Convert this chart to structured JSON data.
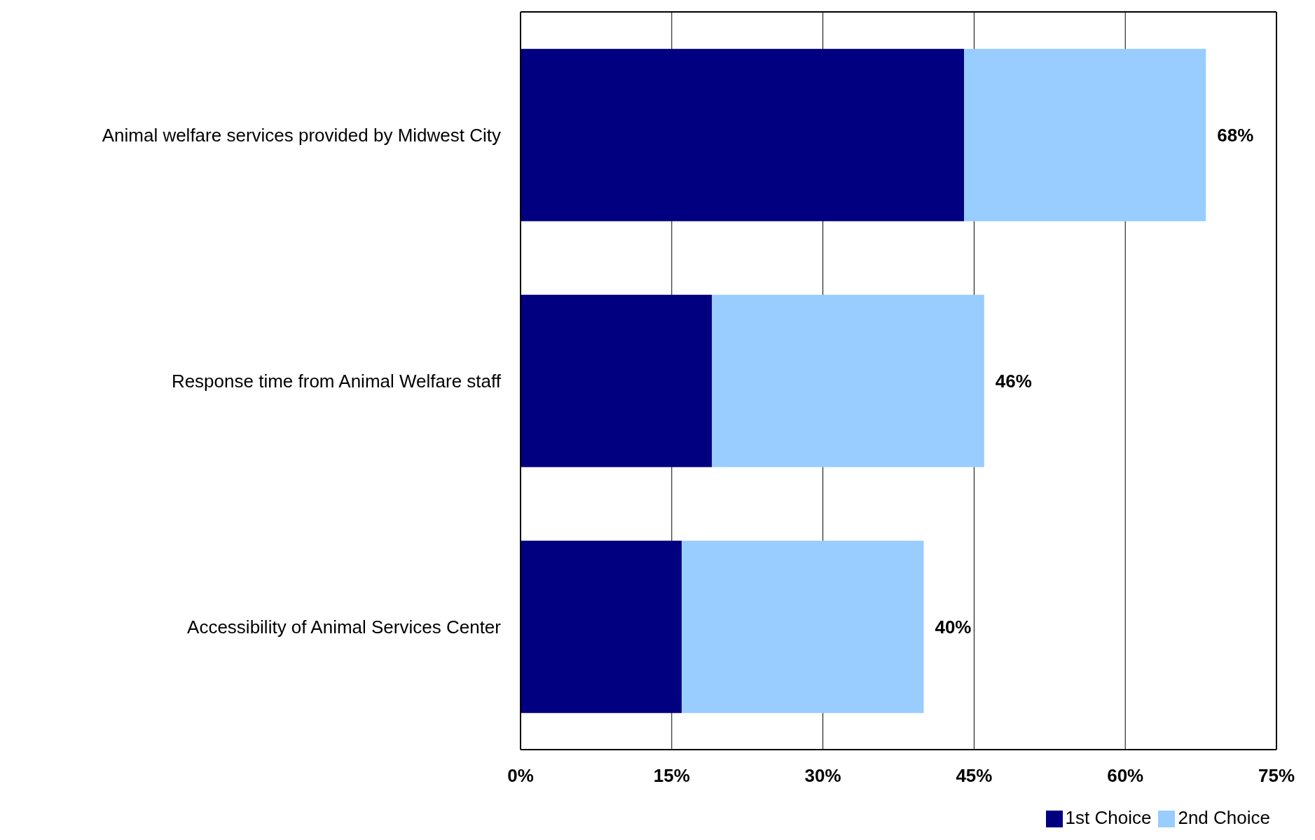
{
  "chart_data": {
    "type": "bar",
    "orientation": "horizontal",
    "stacked": true,
    "categories": [
      "Animal welfare services provided by Midwest City",
      "Response time from Animal Welfare staff",
      "Accessibility of Animal Services Center"
    ],
    "series": [
      {
        "name": "1st Choice",
        "color": "#000080",
        "values": [
          44,
          19,
          16
        ]
      },
      {
        "name": "2nd Choice",
        "color": "#99ccff",
        "values": [
          24,
          27,
          24
        ]
      }
    ],
    "totals": [
      "68%",
      "46%",
      "40%"
    ],
    "xlim": [
      0,
      75
    ],
    "xticks": [
      {
        "value": 0,
        "label": "0%"
      },
      {
        "value": 15,
        "label": "15%"
      },
      {
        "value": 30,
        "label": "30%"
      },
      {
        "value": 45,
        "label": "45%"
      },
      {
        "value": 60,
        "label": "60%"
      },
      {
        "value": 75,
        "label": "75%"
      }
    ],
    "grid": "x",
    "legend": "bottom right"
  }
}
